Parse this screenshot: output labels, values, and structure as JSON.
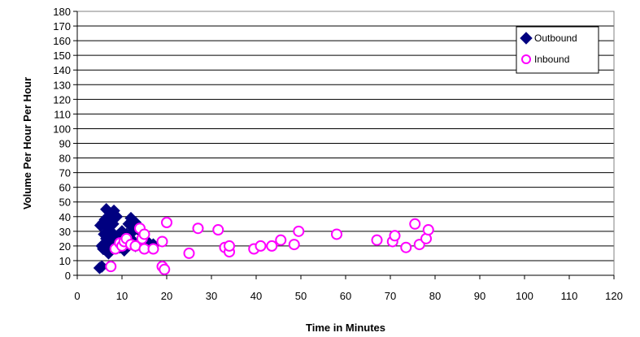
{
  "chart_data": {
    "type": "scatter",
    "title": "",
    "xlabel": "Time in Minutes",
    "ylabel": "Volume Per Hour Per Hour",
    "xlim": [
      0,
      120
    ],
    "ylim": [
      0,
      180
    ],
    "xticks": [
      0,
      10,
      20,
      30,
      40,
      50,
      60,
      70,
      80,
      90,
      100,
      110,
      120
    ],
    "yticks": [
      0,
      10,
      20,
      30,
      40,
      50,
      60,
      70,
      80,
      90,
      100,
      110,
      120,
      130,
      140,
      150,
      160,
      170,
      180
    ],
    "grid": "horizontal",
    "legend_position": "top-right",
    "series": [
      {
        "name": "Outbound",
        "marker": "diamond",
        "color": "#000080",
        "points": [
          [
            5,
            5
          ],
          [
            5.5,
            6
          ],
          [
            5.2,
            34
          ],
          [
            5.5,
            20
          ],
          [
            5.8,
            18
          ],
          [
            6,
            28
          ],
          [
            6.2,
            38
          ],
          [
            6.5,
            45
          ],
          [
            6.5,
            25
          ],
          [
            6.8,
            32
          ],
          [
            7,
            15
          ],
          [
            7,
            22
          ],
          [
            7.2,
            40
          ],
          [
            7.5,
            30
          ],
          [
            7.5,
            17
          ],
          [
            8,
            20
          ],
          [
            8,
            35
          ],
          [
            8.2,
            44
          ],
          [
            8.5,
            24
          ],
          [
            8.8,
            40
          ],
          [
            9,
            27
          ],
          [
            9.5,
            19
          ],
          [
            10,
            25
          ],
          [
            10,
            30
          ],
          [
            10.5,
            17
          ],
          [
            11,
            22
          ],
          [
            11,
            28
          ],
          [
            11.5,
            35
          ],
          [
            12,
            39
          ],
          [
            12,
            25
          ],
          [
            12.5,
            30
          ],
          [
            13,
            20
          ],
          [
            13,
            36
          ],
          [
            13.5,
            22
          ],
          [
            14,
            30
          ],
          [
            16,
            22
          ],
          [
            17,
            21
          ],
          [
            5.8,
            36
          ],
          [
            6.5,
            17
          ],
          [
            7.8,
            26
          ]
        ]
      },
      {
        "name": "Inbound",
        "marker": "circle",
        "color": "#FF00FF",
        "points": [
          [
            7.5,
            6
          ],
          [
            8.5,
            18
          ],
          [
            9.5,
            22
          ],
          [
            10,
            20
          ],
          [
            10.5,
            23
          ],
          [
            11,
            25
          ],
          [
            12,
            21
          ],
          [
            13,
            20
          ],
          [
            14,
            32
          ],
          [
            14.5,
            25
          ],
          [
            15,
            18
          ],
          [
            15,
            28
          ],
          [
            17,
            18
          ],
          [
            19,
            23
          ],
          [
            19,
            6
          ],
          [
            19.5,
            4
          ],
          [
            20,
            36
          ],
          [
            25,
            15
          ],
          [
            27,
            32
          ],
          [
            31.5,
            31
          ],
          [
            33,
            19
          ],
          [
            34,
            16
          ],
          [
            34,
            20
          ],
          [
            39.5,
            18
          ],
          [
            41,
            20
          ],
          [
            43.5,
            20
          ],
          [
            45.5,
            24
          ],
          [
            48.5,
            21
          ],
          [
            49.5,
            30
          ],
          [
            58,
            28
          ],
          [
            67,
            24
          ],
          [
            70.5,
            23
          ],
          [
            71,
            27
          ],
          [
            73.5,
            19
          ],
          [
            75.5,
            35
          ],
          [
            76.5,
            21
          ],
          [
            78,
            25
          ],
          [
            78.5,
            31
          ]
        ]
      }
    ]
  }
}
